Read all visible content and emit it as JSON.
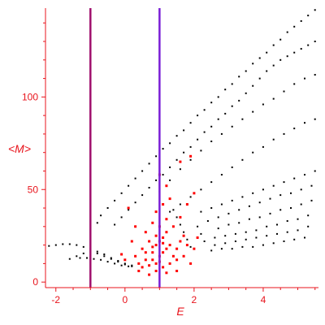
{
  "chart_data": {
    "type": "scatter",
    "xlabel": "E",
    "ylabel": "<M>",
    "xlim": [
      -2.3,
      5.6
    ],
    "ylim": [
      -3,
      148
    ],
    "x_ticks": [
      -2,
      0,
      2,
      4
    ],
    "x_tick_labels": [
      "-2",
      "0",
      "2",
      "4"
    ],
    "y_ticks": [
      0,
      50,
      100
    ],
    "y_tick_labels": [
      "0",
      "50",
      "100"
    ],
    "grid": false,
    "legend": "none",
    "axis_color": "#e8141c",
    "vertical_lines": [
      {
        "x": -1.0,
        "color": "#a0106e"
      },
      {
        "x": 1.0,
        "color": "#7a1fd6"
      }
    ],
    "series": [
      {
        "color": "#000000",
        "points": [
          [
            5.5,
            147
          ],
          [
            5.3,
            144
          ],
          [
            5.1,
            141
          ],
          [
            4.9,
            138
          ],
          [
            4.7,
            135
          ],
          [
            4.5,
            131
          ],
          [
            4.3,
            128
          ],
          [
            4.1,
            124
          ],
          [
            3.9,
            121
          ],
          [
            3.7,
            118
          ],
          [
            3.5,
            114
          ],
          [
            3.3,
            111
          ],
          [
            3.1,
            107
          ],
          [
            2.9,
            104
          ],
          [
            2.7,
            100
          ],
          [
            2.5,
            97
          ],
          [
            2.3,
            93
          ],
          [
            2.1,
            90
          ],
          [
            1.9,
            86
          ],
          [
            1.7,
            82
          ],
          [
            1.5,
            79
          ],
          [
            1.3,
            75
          ],
          [
            1.1,
            72
          ],
          [
            0.9,
            68
          ],
          [
            0.7,
            64
          ],
          [
            0.5,
            60
          ],
          [
            0.3,
            56
          ],
          [
            0.1,
            52
          ],
          [
            -0.1,
            48
          ],
          [
            -0.3,
            44
          ],
          [
            -0.5,
            40
          ],
          [
            -0.7,
            36
          ],
          [
            -0.8,
            32
          ],
          [
            5.5,
            130
          ],
          [
            5.3,
            128
          ],
          [
            5.1,
            126
          ],
          [
            4.9,
            124
          ],
          [
            4.7,
            122
          ],
          [
            4.5,
            120
          ],
          [
            4.3,
            117
          ],
          [
            4.1,
            114
          ],
          [
            3.9,
            110
          ],
          [
            3.7,
            106
          ],
          [
            3.5,
            102
          ],
          [
            3.3,
            98
          ],
          [
            3.1,
            95
          ],
          [
            2.9,
            91
          ],
          [
            2.7,
            88
          ],
          [
            2.5,
            84
          ],
          [
            2.3,
            81
          ],
          [
            2.1,
            77
          ],
          [
            1.9,
            73
          ],
          [
            1.7,
            70
          ],
          [
            1.5,
            66
          ],
          [
            1.3,
            62
          ],
          [
            1.1,
            58
          ],
          [
            0.9,
            55
          ],
          [
            0.7,
            51
          ],
          [
            0.5,
            47
          ],
          [
            0.3,
            43
          ],
          [
            0.1,
            39
          ],
          [
            -0.1,
            35
          ],
          [
            -0.3,
            31
          ],
          [
            5.5,
            112
          ],
          [
            5.2,
            110
          ],
          [
            4.9,
            107
          ],
          [
            4.6,
            103
          ],
          [
            4.3,
            99
          ],
          [
            4.0,
            96
          ],
          [
            3.7,
            92
          ],
          [
            3.4,
            88
          ],
          [
            3.1,
            84
          ],
          [
            2.8,
            80
          ],
          [
            2.5,
            76
          ],
          [
            2.2,
            71
          ],
          [
            1.9,
            66
          ],
          [
            1.6,
            61
          ],
          [
            1.3,
            55
          ],
          [
            1.0,
            49
          ],
          [
            5.5,
            88
          ],
          [
            5.2,
            86
          ],
          [
            4.9,
            83
          ],
          [
            4.6,
            80
          ],
          [
            4.3,
            77
          ],
          [
            4.0,
            73
          ],
          [
            3.7,
            70
          ],
          [
            3.4,
            66
          ],
          [
            3.1,
            62
          ],
          [
            2.8,
            58
          ],
          [
            2.5,
            54
          ],
          [
            2.2,
            50
          ],
          [
            1.9,
            46
          ],
          [
            1.6,
            42
          ],
          [
            1.3,
            38
          ],
          [
            5.5,
            60
          ],
          [
            5.2,
            58
          ],
          [
            4.9,
            56
          ],
          [
            4.6,
            54
          ],
          [
            4.3,
            52
          ],
          [
            4.0,
            50
          ],
          [
            3.7,
            48
          ],
          [
            3.4,
            46
          ],
          [
            3.1,
            44
          ],
          [
            2.8,
            42
          ],
          [
            2.5,
            40
          ],
          [
            2.2,
            38
          ],
          [
            5.4,
            52
          ],
          [
            5.1,
            50
          ],
          [
            4.8,
            48
          ],
          [
            4.5,
            47
          ],
          [
            4.2,
            45
          ],
          [
            3.9,
            43
          ],
          [
            3.6,
            41
          ],
          [
            3.3,
            39
          ],
          [
            3.0,
            37
          ],
          [
            2.7,
            35
          ],
          [
            5.4,
            44
          ],
          [
            5.1,
            42
          ],
          [
            4.8,
            40
          ],
          [
            4.5,
            39
          ],
          [
            4.2,
            37
          ],
          [
            3.9,
            35
          ],
          [
            3.6,
            34
          ],
          [
            3.3,
            32
          ],
          [
            3.0,
            31
          ],
          [
            2.7,
            29
          ],
          [
            5.3,
            36
          ],
          [
            5.0,
            34
          ],
          [
            4.7,
            33
          ],
          [
            4.4,
            31
          ],
          [
            4.1,
            30
          ],
          [
            3.8,
            28
          ],
          [
            3.5,
            27
          ],
          [
            3.2,
            26
          ],
          [
            2.9,
            25
          ],
          [
            2.6,
            24
          ],
          [
            5.3,
            30
          ],
          [
            5.0,
            28
          ],
          [
            4.7,
            27
          ],
          [
            4.4,
            26
          ],
          [
            4.1,
            25
          ],
          [
            3.8,
            24
          ],
          [
            3.5,
            23
          ],
          [
            3.2,
            22
          ],
          [
            2.9,
            21
          ],
          [
            2.6,
            20
          ],
          [
            5.2,
            24
          ],
          [
            4.9,
            23
          ],
          [
            4.6,
            22
          ],
          [
            4.3,
            21
          ],
          [
            4.0,
            20
          ],
          [
            3.7,
            19
          ],
          [
            3.4,
            19
          ],
          [
            3.1,
            18
          ],
          [
            2.8,
            18
          ],
          [
            2.5,
            17
          ],
          [
            2.3,
            22
          ],
          [
            2.2,
            26
          ],
          [
            2.1,
            30
          ],
          [
            2.4,
            33
          ],
          [
            1.9,
            19
          ],
          [
            1.8,
            23
          ],
          [
            1.7,
            27
          ],
          [
            1.6,
            31
          ],
          [
            1.5,
            35
          ],
          [
            1.4,
            39
          ],
          [
            -2.2,
            19.5
          ],
          [
            -2.0,
            20
          ],
          [
            -1.8,
            20.5
          ],
          [
            -1.6,
            20.5
          ],
          [
            -1.4,
            20
          ],
          [
            -1.2,
            19
          ],
          [
            -1.0,
            18
          ],
          [
            -0.8,
            16.5
          ],
          [
            -0.6,
            15
          ],
          [
            -0.4,
            13
          ],
          [
            -0.2,
            11.5
          ],
          [
            0.0,
            10
          ],
          [
            0.2,
            9
          ],
          [
            -1.6,
            12.5
          ],
          [
            -1.4,
            14
          ],
          [
            -1.2,
            15.5
          ],
          [
            -1.0,
            16.5
          ],
          [
            -0.8,
            15.5
          ],
          [
            -0.6,
            14
          ],
          [
            -0.4,
            12.5
          ],
          [
            -0.2,
            11
          ],
          [
            0.0,
            9.5
          ],
          [
            0.2,
            8.5
          ],
          [
            -1.3,
            13
          ],
          [
            -1.1,
            13
          ],
          [
            -0.9,
            12.5
          ],
          [
            -0.7,
            12
          ],
          [
            -0.5,
            11
          ],
          [
            -0.3,
            10
          ],
          [
            -0.1,
            9
          ],
          [
            0.1,
            8.5
          ]
        ]
      },
      {
        "color": "#ff0000",
        "points": [
          [
            0.5,
            8
          ],
          [
            0.7,
            9
          ],
          [
            0.9,
            10
          ],
          [
            0.8,
            12
          ],
          [
            1.0,
            14
          ],
          [
            1.1,
            16
          ],
          [
            1.2,
            18
          ],
          [
            0.9,
            20
          ],
          [
            1.0,
            22
          ],
          [
            1.1,
            24
          ],
          [
            0.8,
            16
          ],
          [
            0.6,
            12
          ],
          [
            0.4,
            10
          ],
          [
            0.3,
            14
          ],
          [
            0.5,
            18
          ],
          [
            0.7,
            22
          ],
          [
            0.9,
            25
          ],
          [
            1.2,
            27
          ],
          [
            1.3,
            20
          ],
          [
            1.4,
            14
          ],
          [
            1.5,
            18
          ],
          [
            1.6,
            22
          ],
          [
            1.7,
            25
          ],
          [
            1.5,
            12
          ],
          [
            1.3,
            10
          ],
          [
            1.1,
            8
          ],
          [
            0.9,
            6
          ],
          [
            0.6,
            16
          ],
          [
            1.8,
            20
          ],
          [
            2.0,
            18
          ],
          [
            1.0,
            30
          ],
          [
            1.2,
            34
          ],
          [
            0.9,
            38
          ],
          [
            1.1,
            42
          ],
          [
            1.3,
            45
          ],
          [
            1.2,
            52
          ],
          [
            1.0,
            58
          ],
          [
            1.8,
            42
          ],
          [
            2.0,
            48
          ],
          [
            1.6,
            65
          ],
          [
            1.9,
            68
          ],
          [
            0.1,
            40
          ],
          [
            0.3,
            30
          ],
          [
            0.2,
            22
          ],
          [
            0.6,
            27
          ],
          [
            0.8,
            32
          ],
          [
            1.4,
            30
          ],
          [
            1.6,
            35
          ],
          [
            1.7,
            14
          ],
          [
            1.9,
            10
          ],
          [
            0.0,
            12
          ],
          [
            -0.1,
            15
          ],
          [
            0.4,
            6
          ],
          [
            1.2,
            5
          ],
          [
            0.7,
            4
          ],
          [
            1.5,
            6
          ],
          [
            2.1,
            24
          ],
          [
            1.0,
            11
          ],
          [
            0.8,
            19
          ],
          [
            1.1,
            21
          ]
        ]
      }
    ]
  }
}
